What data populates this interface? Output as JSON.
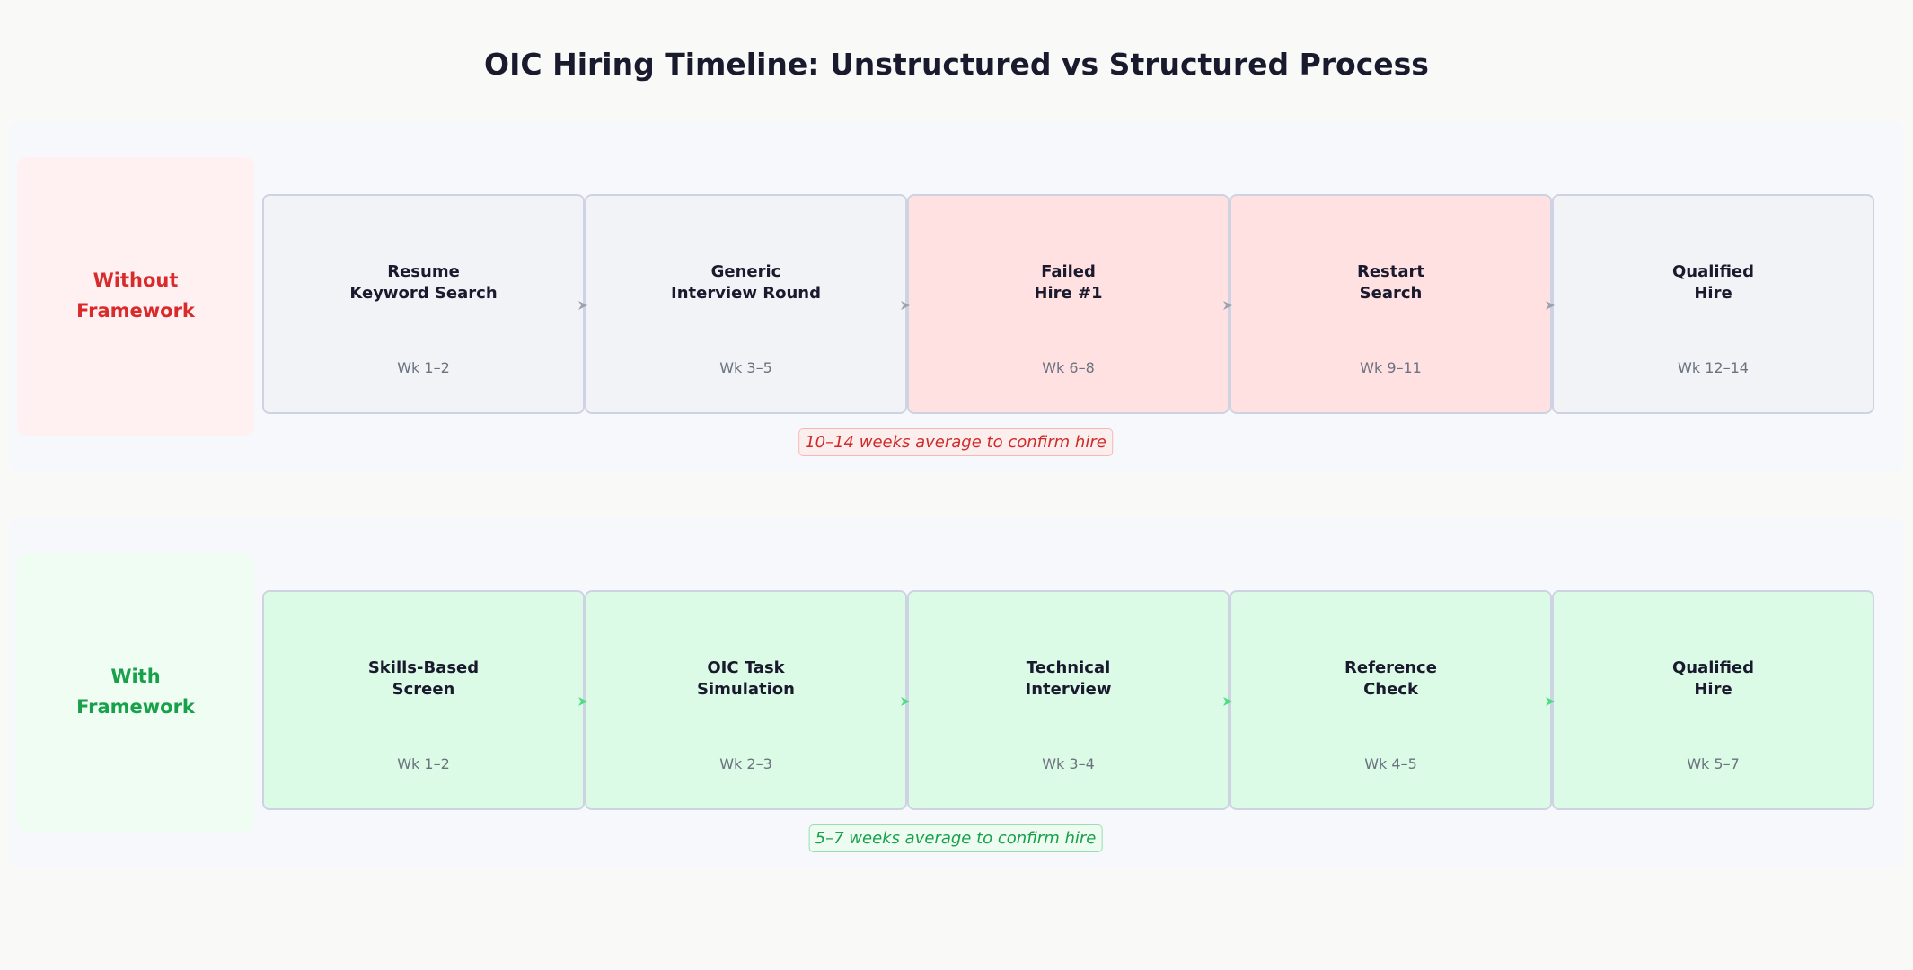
{
  "title": "OIC Hiring Timeline: Unstructured vs Structured Process",
  "colors": {
    "negative_accent": "#d92b2b",
    "positive_accent": "#18a04a",
    "neutral_stage_bg": "#f2f3f6",
    "failed_stage_bg": "#ffe1e1",
    "structured_stage_bg": "#dcfbe6",
    "neutral_arrow": "#9ca3af",
    "positive_arrow": "#4ade80"
  },
  "lanes": [
    {
      "label": "Without\nFramework",
      "label_color": "#d92b2b",
      "label_bg": "#fff1f1",
      "summary": "10–14 weeks average to confirm hire",
      "stages": [
        {
          "name": "Resume\nKeyword Search",
          "time": "Wk 1–2",
          "status": "neutral"
        },
        {
          "name": "Generic\nInterview Round",
          "time": "Wk 3–5",
          "status": "neutral"
        },
        {
          "name": "Failed\nHire #1",
          "time": "Wk 6–8",
          "status": "failed"
        },
        {
          "name": "Restart\nSearch",
          "time": "Wk 9–11",
          "status": "failed"
        },
        {
          "name": "Qualified\nHire",
          "time": "Wk 12–14",
          "status": "neutral"
        }
      ]
    },
    {
      "label": "With\nFramework",
      "label_color": "#18a04a",
      "label_bg": "#effdf3",
      "summary": "5–7 weeks average to confirm hire",
      "stages": [
        {
          "name": "Skills-Based\nScreen",
          "time": "Wk 1–2",
          "status": "structured"
        },
        {
          "name": "OIC Task\nSimulation",
          "time": "Wk 2–3",
          "status": "structured"
        },
        {
          "name": "Technical\nInterview",
          "time": "Wk 3–4",
          "status": "structured"
        },
        {
          "name": "Reference\nCheck",
          "time": "Wk 4–5",
          "status": "structured"
        },
        {
          "name": "Qualified\nHire",
          "time": "Wk 5–7",
          "status": "structured"
        }
      ]
    }
  ]
}
